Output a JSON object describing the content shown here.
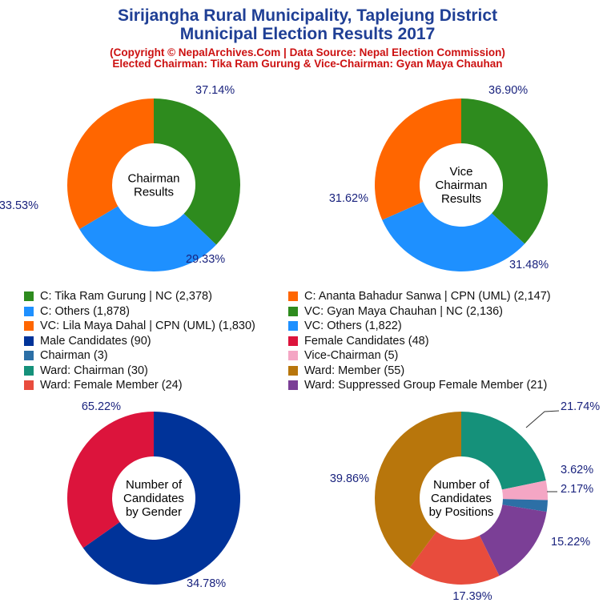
{
  "header": {
    "title_line1": "Sirijangha Rural Municipality, Taplejung District",
    "title_line2": "Municipal Election Results 2017",
    "sub_line1": "(Copyright © NepalArchives.Com | Data Source: Nepal Election Commission)",
    "sub_line2": "Elected Chairman: Tika Ram Gurung & Vice-Chairman: Gyan Maya Chauhan"
  },
  "legend": [
    {
      "label": "C: Tika Ram Gurung | NC (2,378)",
      "color": "#2e8b1e"
    },
    {
      "label": "C: Ananta Bahadur Sanwa | CPN (UML) (2,147)",
      "color": "#ff6600"
    },
    {
      "label": "C: Others (1,878)",
      "color": "#1e90ff"
    },
    {
      "label": "VC: Gyan Maya Chauhan | NC (2,136)",
      "color": "#2e8b1e"
    },
    {
      "label": "VC: Lila Maya Dahal | CPN (UML) (1,830)",
      "color": "#ff6600"
    },
    {
      "label": "VC: Others (1,822)",
      "color": "#1e90ff"
    },
    {
      "label": "Male Candidates (90)",
      "color": "#003399"
    },
    {
      "label": "Female Candidates (48)",
      "color": "#dc143c"
    },
    {
      "label": "Chairman (3)",
      "color": "#2c6fa6"
    },
    {
      "label": "Vice-Chairman (5)",
      "color": "#f4a6c4"
    },
    {
      "label": "Ward: Chairman (30)",
      "color": "#15917a"
    },
    {
      "label": "Ward: Member (55)",
      "color": "#b8760c"
    },
    {
      "label": "Ward: Female Member (24)",
      "color": "#e84c3d"
    },
    {
      "label": "Ward: Suppressed Group Female Member (21)",
      "color": "#7b3f96"
    }
  ],
  "chart_data": [
    {
      "type": "pie",
      "center_label": [
        "Chairman",
        "Results"
      ],
      "slices": [
        {
          "name": "C: Tika Ram Gurung | NC",
          "value": 2378,
          "percent_label": "37.14%",
          "color": "#2e8b1e"
        },
        {
          "name": "C: Others",
          "value": 1878,
          "percent_label": "29.33%",
          "color": "#1e90ff"
        },
        {
          "name": "C: Ananta Bahadur Sanwa | CPN (UML)",
          "value": 2147,
          "percent_label": "33.53%",
          "color": "#ff6600"
        }
      ]
    },
    {
      "type": "pie",
      "center_label": [
        "Vice",
        "Chairman",
        "Results"
      ],
      "slices": [
        {
          "name": "VC: Gyan Maya Chauhan | NC",
          "value": 2136,
          "percent_label": "36.90%",
          "color": "#2e8b1e"
        },
        {
          "name": "VC: Others",
          "value": 1822,
          "percent_label": "31.48%",
          "color": "#1e90ff"
        },
        {
          "name": "VC: Lila Maya Dahal | CPN (UML)",
          "value": 1830,
          "percent_label": "31.62%",
          "color": "#ff6600"
        }
      ]
    },
    {
      "type": "pie",
      "center_label": [
        "Number of",
        "Candidates",
        "by Gender"
      ],
      "slices": [
        {
          "name": "Male Candidates",
          "value": 90,
          "percent_label": "65.22%",
          "color": "#003399"
        },
        {
          "name": "Female Candidates",
          "value": 48,
          "percent_label": "34.78%",
          "color": "#dc143c"
        }
      ]
    },
    {
      "type": "pie",
      "center_label": [
        "Number of",
        "Candidates",
        "by Positions"
      ],
      "slices": [
        {
          "name": "Ward: Chairman",
          "value": 30,
          "percent_label": "21.74%",
          "color": "#15917a"
        },
        {
          "name": "Vice-Chairman",
          "value": 5,
          "percent_label": "3.62%",
          "color": "#f4a6c4"
        },
        {
          "name": "Chairman",
          "value": 3,
          "percent_label": "2.17%",
          "color": "#2c6fa6"
        },
        {
          "name": "Ward: Suppressed Group Female Member",
          "value": 21,
          "percent_label": "15.22%",
          "color": "#7b3f96"
        },
        {
          "name": "Ward: Female Member",
          "value": 24,
          "percent_label": "17.39%",
          "color": "#e84c3d"
        },
        {
          "name": "Ward: Member",
          "value": 55,
          "percent_label": "39.86%",
          "color": "#b8760c"
        }
      ]
    }
  ]
}
